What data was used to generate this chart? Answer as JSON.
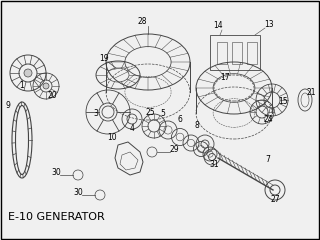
{
  "title": "E-10 GENERATOR",
  "background_color": "#f0f0f0",
  "border_color": "#000000",
  "line_color": "#444444",
  "text_color": "#000000",
  "title_fontsize": 8,
  "label_fontsize": 5.5,
  "fig_width": 3.2,
  "fig_height": 2.4,
  "dpi": 100
}
